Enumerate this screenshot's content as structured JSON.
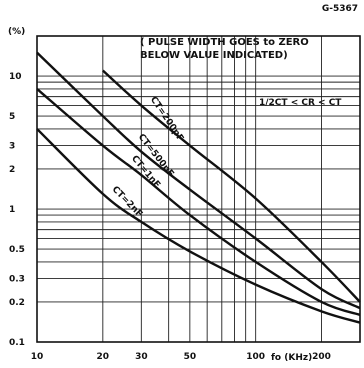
{
  "figure_id": "G-5367",
  "y_unit": "(%)",
  "note": [
    "( PULSE WIDTH GOES to ZERO",
    "BELOW VALUE INDICATED)"
  ],
  "condition": "1/2CT < CR < CT",
  "x_unit": "fo (KHz)",
  "chart_data": {
    "type": "line",
    "title": "",
    "xlabel": "fo (KHz)",
    "ylabel": "(%)",
    "xscale": "log",
    "yscale": "log",
    "xlim": [
      10,
      300
    ],
    "ylim": [
      0.1,
      20
    ],
    "grid": true,
    "x_ticks": [
      10,
      20,
      30,
      50,
      100,
      200
    ],
    "x_tick_labels": [
      "10",
      "20",
      "30",
      "50",
      "100",
      "200"
    ],
    "y_ticks": [
      0.1,
      0.2,
      0.3,
      0.5,
      1,
      2,
      3,
      5,
      10
    ],
    "y_tick_labels": [
      "0.1",
      "0.2",
      "0.3",
      "0.5",
      "1",
      "2",
      "3",
      "5",
      "10"
    ],
    "series": [
      {
        "name": "CT=200pF",
        "x": [
          20,
          30,
          50,
          100,
          200,
          300
        ],
        "y": [
          11,
          6.0,
          3.0,
          1.2,
          0.4,
          0.2
        ]
      },
      {
        "name": "CT=500pF",
        "x": [
          10,
          20,
          30,
          50,
          100,
          200,
          300
        ],
        "y": [
          15,
          5.0,
          2.7,
          1.4,
          0.6,
          0.25,
          0.18
        ]
      },
      {
        "name": "CT=1nF",
        "x": [
          10,
          20,
          30,
          50,
          100,
          200,
          300
        ],
        "y": [
          8.0,
          3.0,
          1.8,
          0.9,
          0.4,
          0.2,
          0.16
        ]
      },
      {
        "name": "CT=2nF",
        "x": [
          10,
          20,
          30,
          50,
          100,
          200,
          300
        ],
        "y": [
          4.0,
          1.3,
          0.8,
          0.48,
          0.27,
          0.17,
          0.14
        ]
      }
    ]
  }
}
